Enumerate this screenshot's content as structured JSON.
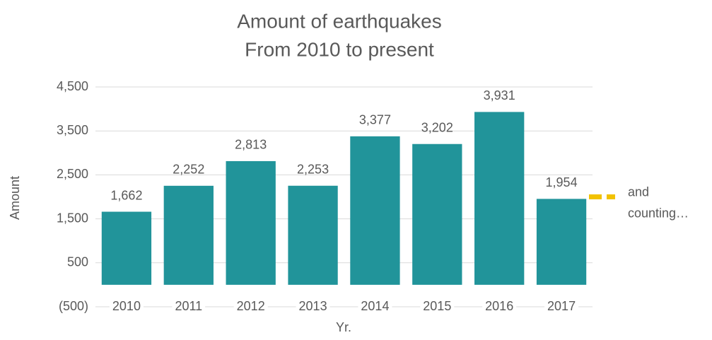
{
  "chart_data": {
    "type": "bar",
    "title": "Amount of earthquakes",
    "subtitle": "From 2010 to present",
    "x_label": "Yr.",
    "y_label": "Amount",
    "categories": [
      "2010",
      "2011",
      "2012",
      "2013",
      "2014",
      "2015",
      "2016",
      "2017"
    ],
    "values": [
      1662,
      2252,
      2813,
      2253,
      3377,
      3202,
      3931,
      1954
    ],
    "value_labels": [
      "1,662",
      "2,252",
      "2,813",
      "2,253",
      "3,377",
      "3,202",
      "3,931",
      "1,954"
    ],
    "color": "#21949a",
    "ylim": [
      -500,
      4500
    ],
    "yticks": [
      {
        "value": -500,
        "label": "(500)"
      },
      500,
      {
        "value": 1500,
        "label": "1,500"
      },
      {
        "value": 2500,
        "label": "2,500"
      },
      {
        "value": 3500,
        "label": "3,500"
      },
      {
        "value": 4500,
        "label": "4,500"
      }
    ],
    "grid": true,
    "annotation": {
      "lines": [
        "and",
        "counting…"
      ],
      "value": 2000,
      "color": "#f2c200"
    }
  }
}
